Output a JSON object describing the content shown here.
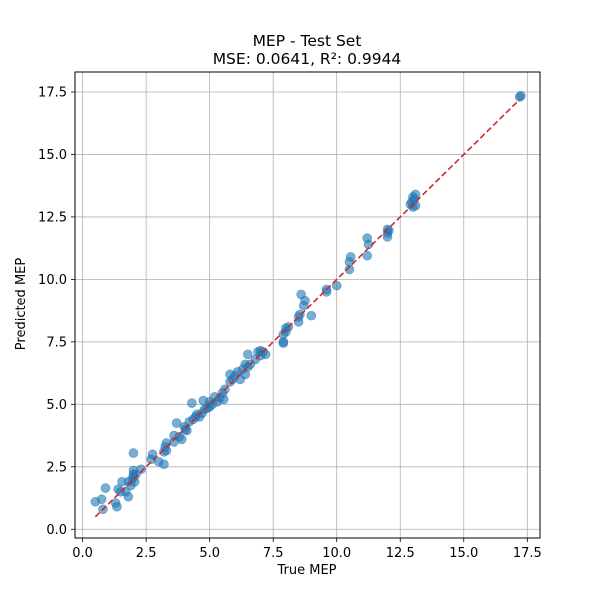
{
  "chart_data": {
    "type": "scatter",
    "title": "MEP - Test Set",
    "subtitle": "MSE: 0.0641, R²: 0.9944",
    "xlabel": "True MEP",
    "ylabel": "Predicted MEP",
    "xlim": [
      -0.3,
      18.0
    ],
    "ylim": [
      -0.35,
      18.3
    ],
    "xticks": [
      "0.0",
      "2.5",
      "5.0",
      "7.5",
      "10.0",
      "12.5",
      "15.0",
      "17.5"
    ],
    "yticks": [
      "0.0",
      "2.5",
      "5.0",
      "7.5",
      "10.0",
      "12.5",
      "15.0",
      "17.5"
    ],
    "grid": true,
    "point_color": "#1f77b4",
    "reference_line": {
      "x": [
        0.5,
        17.2
      ],
      "y": [
        0.5,
        17.2
      ],
      "color": "#d62728",
      "style": "dashed"
    },
    "points": [
      [
        0.5,
        1.1
      ],
      [
        0.75,
        1.2
      ],
      [
        0.8,
        0.8
      ],
      [
        0.9,
        1.65
      ],
      [
        1.3,
        1.05
      ],
      [
        1.35,
        0.9
      ],
      [
        1.4,
        1.6
      ],
      [
        1.5,
        1.5
      ],
      [
        1.55,
        1.9
      ],
      [
        1.7,
        1.5
      ],
      [
        1.8,
        1.3
      ],
      [
        1.8,
        1.9
      ],
      [
        1.9,
        1.75
      ],
      [
        1.95,
        2.0
      ],
      [
        2.0,
        2.1
      ],
      [
        2.0,
        2.2
      ],
      [
        2.0,
        2.35
      ],
      [
        2.0,
        3.05
      ],
      [
        2.05,
        1.9
      ],
      [
        2.1,
        2.2
      ],
      [
        2.3,
        2.4
      ],
      [
        2.7,
        2.8
      ],
      [
        2.75,
        3.0
      ],
      [
        3.0,
        2.7
      ],
      [
        3.2,
        3.1
      ],
      [
        3.2,
        2.6
      ],
      [
        3.25,
        3.3
      ],
      [
        3.3,
        3.45
      ],
      [
        3.3,
        3.15
      ],
      [
        3.6,
        3.5
      ],
      [
        3.6,
        3.75
      ],
      [
        3.7,
        4.25
      ],
      [
        3.8,
        3.7
      ],
      [
        3.9,
        3.6
      ],
      [
        4.0,
        4.1
      ],
      [
        4.05,
        4.0
      ],
      [
        4.1,
        3.95
      ],
      [
        4.2,
        4.3
      ],
      [
        4.3,
        5.05
      ],
      [
        4.35,
        4.4
      ],
      [
        4.45,
        4.5
      ],
      [
        4.5,
        4.6
      ],
      [
        4.6,
        4.5
      ],
      [
        4.7,
        4.65
      ],
      [
        4.75,
        5.15
      ],
      [
        4.8,
        4.8
      ],
      [
        4.9,
        4.85
      ],
      [
        5.0,
        5.1
      ],
      [
        5.0,
        4.9
      ],
      [
        5.1,
        5.0
      ],
      [
        5.2,
        5.3
      ],
      [
        5.3,
        5.1
      ],
      [
        5.4,
        5.25
      ],
      [
        5.5,
        5.45
      ],
      [
        5.55,
        5.2
      ],
      [
        5.6,
        5.6
      ],
      [
        5.8,
        5.9
      ],
      [
        5.8,
        6.2
      ],
      [
        5.9,
        6.0
      ],
      [
        6.0,
        6.15
      ],
      [
        6.1,
        6.3
      ],
      [
        6.2,
        6.0
      ],
      [
        6.3,
        6.4
      ],
      [
        6.4,
        6.6
      ],
      [
        6.4,
        6.2
      ],
      [
        6.5,
        6.5
      ],
      [
        6.5,
        7.0
      ],
      [
        6.6,
        6.6
      ],
      [
        6.8,
        6.8
      ],
      [
        6.9,
        7.1
      ],
      [
        7.0,
        6.95
      ],
      [
        7.0,
        7.15
      ],
      [
        7.1,
        7.1
      ],
      [
        7.2,
        7.0
      ],
      [
        7.9,
        7.45
      ],
      [
        7.9,
        7.5
      ],
      [
        7.9,
        7.8
      ],
      [
        8.0,
        8.05
      ],
      [
        8.0,
        7.9
      ],
      [
        8.1,
        8.1
      ],
      [
        8.5,
        8.3
      ],
      [
        8.5,
        8.5
      ],
      [
        8.55,
        8.6
      ],
      [
        8.6,
        9.4
      ],
      [
        8.7,
        8.95
      ],
      [
        8.75,
        9.15
      ],
      [
        9.0,
        8.55
      ],
      [
        9.6,
        9.5
      ],
      [
        9.6,
        9.6
      ],
      [
        10.0,
        9.75
      ],
      [
        10.5,
        10.4
      ],
      [
        10.5,
        10.7
      ],
      [
        10.55,
        10.9
      ],
      [
        11.2,
        10.95
      ],
      [
        11.2,
        11.65
      ],
      [
        11.25,
        11.4
      ],
      [
        12.0,
        11.7
      ],
      [
        12.0,
        11.85
      ],
      [
        12.0,
        12.0
      ],
      [
        12.05,
        11.95
      ],
      [
        12.9,
        13.0
      ],
      [
        12.95,
        13.1
      ],
      [
        13.0,
        13.3
      ],
      [
        13.0,
        12.9
      ],
      [
        13.05,
        13.2
      ],
      [
        13.1,
        13.4
      ],
      [
        13.1,
        12.95
      ],
      [
        17.2,
        17.3
      ],
      [
        17.25,
        17.35
      ]
    ]
  }
}
